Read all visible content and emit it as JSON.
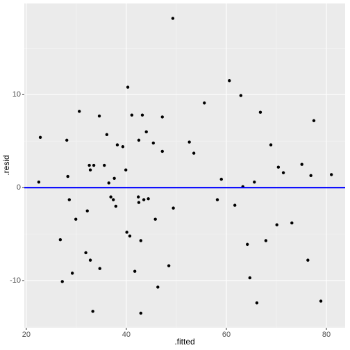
{
  "chart_data": {
    "type": "scatter",
    "x_label": ".fitted",
    "y_label": ".resid",
    "series": [
      {
        "color": "#000000",
        "x": [
          22.5,
          22.8,
          26.8,
          27.2,
          28.1,
          28.3,
          28.6,
          29.2,
          29.9,
          30.6,
          31.9,
          32.2,
          32.6,
          32.8,
          32.8,
          33.5,
          33.3,
          34.6,
          34.7,
          35.6,
          36.1,
          36.5,
          36.9,
          37.4,
          37.6,
          37.9,
          38.2,
          39.3,
          39.9,
          40.1,
          40.3,
          40.7,
          41.1,
          41.7,
          42.4,
          42.5,
          42.5,
          42.9,
          42.9,
          43.2,
          43.5,
          44.0,
          44.4,
          45.4,
          45.8,
          46.3,
          47.2,
          47.2,
          48.5,
          49.3,
          49.4,
          52.6,
          53.5,
          55.6,
          58.2,
          59.0,
          60.6,
          61.7,
          62.9,
          63.3,
          64.2,
          64.7,
          65.6,
          66.1,
          66.8,
          67.9,
          68.9,
          70.1,
          70.4,
          71.4,
          73.1,
          75.1,
          76.3,
          76.9,
          77.5,
          78.9,
          81.0
        ],
        "values": [
          0.6,
          5.4,
          -5.6,
          -10.1,
          5.1,
          1.2,
          -1.3,
          -9.2,
          -3.4,
          8.2,
          -7.0,
          -2.5,
          2.4,
          1.9,
          -7.8,
          2.4,
          -13.3,
          7.7,
          -8.7,
          2.4,
          5.7,
          0.5,
          -1.0,
          -1.3,
          1.0,
          -2.0,
          4.6,
          4.4,
          1.9,
          -4.8,
          10.8,
          -5.2,
          7.8,
          -9.0,
          -1.0,
          -1.6,
          5.1,
          -5.7,
          -13.5,
          7.8,
          -1.3,
          6.0,
          -1.2,
          4.8,
          -3.4,
          -10.7,
          3.9,
          7.6,
          -8.4,
          18.2,
          -2.2,
          4.9,
          3.7,
          9.1,
          -1.3,
          0.9,
          11.5,
          -1.9,
          9.9,
          0.1,
          -6.1,
          -9.7,
          0.6,
          -12.4,
          8.1,
          -5.7,
          4.6,
          -4.0,
          2.2,
          1.6,
          -3.8,
          2.5,
          -7.8,
          1.3,
          7.2,
          -12.2,
          1.4
        ]
      }
    ],
    "hline": {
      "y": 0,
      "color": "#0000ff"
    },
    "xlim": [
      19.6,
      83.75
    ],
    "ylim": [
      -15.07,
      19.8
    ],
    "xticks": [
      20,
      40,
      60,
      80
    ],
    "yticks": [
      -10,
      0,
      10
    ],
    "grid": true
  }
}
